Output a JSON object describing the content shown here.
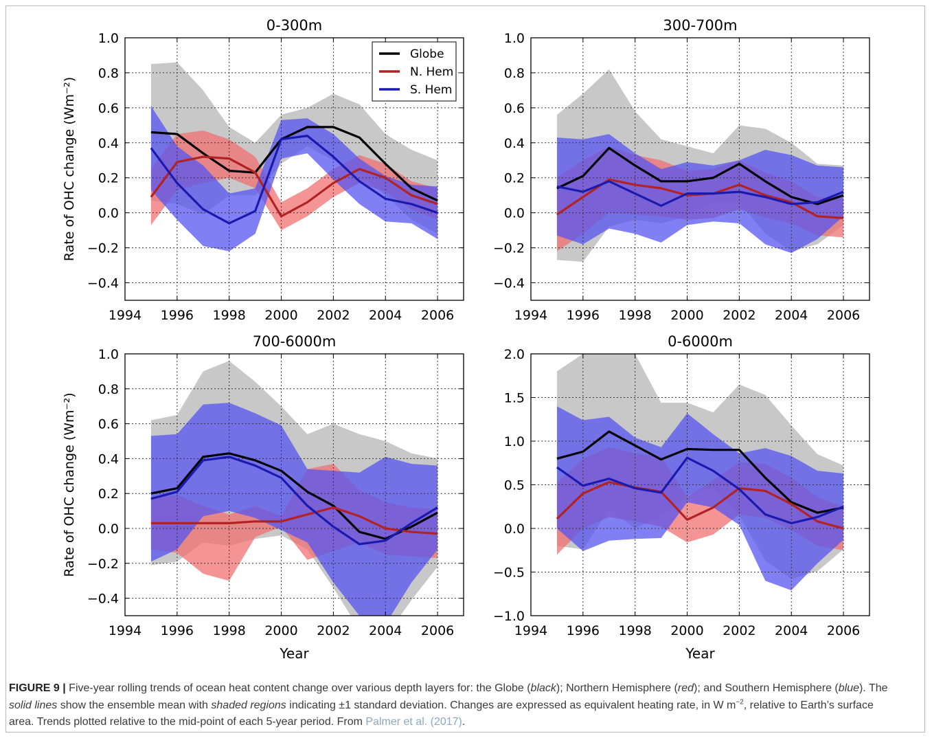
{
  "colors": {
    "globe": "#000000",
    "nhem": "#b22222",
    "shem": "#1a1ab0",
    "globe_band": "#c8c8c8",
    "nhem_band": "#f07070",
    "shem_band": "#5555f0"
  },
  "chart_data": [
    {
      "type": "line",
      "title": "0-300m",
      "xlabel": "",
      "ylabel": "Rate of OHC change (Wm⁻²)",
      "xlim": [
        1994,
        2007
      ],
      "ylim": [
        -0.5,
        1.0
      ],
      "xticks": [
        1994,
        1996,
        1998,
        2000,
        2002,
        2004,
        2006
      ],
      "yticks": [
        -0.4,
        -0.2,
        0.0,
        0.2,
        0.4,
        0.6,
        0.8,
        1.0
      ],
      "yticklabels": [
        "−0.4",
        "−0.2",
        "0.0",
        "0.2",
        "0.4",
        "0.6",
        "0.8",
        "1.0"
      ],
      "grid": true,
      "legend": "top-right",
      "x": [
        1995,
        1996,
        1997,
        1998,
        1999,
        2000,
        2001,
        2002,
        2003,
        2004,
        2005,
        2006
      ],
      "series": [
        {
          "name": "Globe",
          "key": "globe",
          "mean": [
            0.46,
            0.45,
            0.34,
            0.24,
            0.23,
            0.42,
            0.49,
            0.49,
            0.43,
            0.28,
            0.14,
            0.07
          ],
          "upper": [
            0.85,
            0.86,
            0.7,
            0.49,
            0.4,
            0.56,
            0.6,
            0.68,
            0.62,
            0.45,
            0.36,
            0.3
          ],
          "lower": [
            0.07,
            0.05,
            -0.01,
            0.1,
            0.1,
            0.28,
            0.38,
            0.3,
            0.22,
            0.1,
            -0.04,
            -0.12
          ]
        },
        {
          "name": "N. Hem",
          "key": "nhem",
          "mean": [
            0.09,
            0.29,
            0.32,
            0.31,
            0.23,
            -0.02,
            0.06,
            0.17,
            0.25,
            0.2,
            0.1,
            0.05
          ],
          "upper": [
            0.25,
            0.45,
            0.47,
            0.42,
            0.32,
            0.06,
            0.14,
            0.25,
            0.33,
            0.28,
            0.18,
            0.14
          ],
          "lower": [
            -0.07,
            0.13,
            0.17,
            0.2,
            0.14,
            -0.1,
            -0.02,
            0.09,
            0.17,
            0.12,
            0.02,
            -0.04
          ]
        },
        {
          "name": "S. Hem",
          "key": "shem",
          "mean": [
            0.37,
            0.17,
            0.02,
            -0.06,
            0.01,
            0.42,
            0.44,
            0.32,
            0.18,
            0.08,
            0.05,
            0.0
          ],
          "upper": [
            0.61,
            0.38,
            0.27,
            0.11,
            0.14,
            0.53,
            0.54,
            0.45,
            0.31,
            0.21,
            0.16,
            0.15
          ],
          "lower": [
            0.13,
            -0.04,
            -0.19,
            -0.22,
            -0.12,
            0.31,
            0.34,
            0.19,
            0.05,
            -0.05,
            -0.06,
            -0.15
          ]
        }
      ]
    },
    {
      "type": "line",
      "title": "300-700m",
      "xlabel": "",
      "ylabel": "",
      "xlim": [
        1994,
        2007
      ],
      "ylim": [
        -0.5,
        1.0
      ],
      "xticks": [
        1994,
        1996,
        1998,
        2000,
        2002,
        2004,
        2006
      ],
      "yticks": [
        -0.4,
        -0.2,
        0.0,
        0.2,
        0.4,
        0.6,
        0.8,
        1.0
      ],
      "yticklabels": [
        "−0.4",
        "−0.2",
        "0.0",
        "0.2",
        "0.4",
        "0.6",
        "0.8",
        "1.0"
      ],
      "grid": true,
      "x": [
        1995,
        1996,
        1997,
        1998,
        1999,
        2000,
        2001,
        2002,
        2003,
        2004,
        2005,
        2006
      ],
      "series": [
        {
          "key": "globe",
          "mean": [
            0.14,
            0.21,
            0.37,
            0.27,
            0.18,
            0.18,
            0.2,
            0.28,
            0.18,
            0.09,
            0.05,
            0.1
          ],
          "upper": [
            0.56,
            0.68,
            0.82,
            0.58,
            0.42,
            0.38,
            0.34,
            0.5,
            0.48,
            0.4,
            0.28,
            0.27
          ],
          "lower": [
            -0.27,
            -0.28,
            -0.08,
            -0.04,
            -0.06,
            -0.02,
            0.06,
            0.06,
            -0.12,
            -0.22,
            -0.18,
            -0.07
          ]
        },
        {
          "key": "nhem",
          "mean": [
            -0.01,
            0.09,
            0.19,
            0.16,
            0.14,
            0.1,
            0.11,
            0.16,
            0.1,
            0.06,
            -0.02,
            -0.03
          ],
          "upper": [
            0.2,
            0.3,
            0.38,
            0.33,
            0.3,
            0.24,
            0.25,
            0.3,
            0.23,
            0.18,
            0.09,
            0.08
          ],
          "lower": [
            -0.22,
            -0.12,
            0.0,
            -0.01,
            -0.02,
            -0.04,
            -0.03,
            0.02,
            -0.03,
            -0.06,
            -0.13,
            -0.14
          ]
        },
        {
          "key": "shem",
          "mean": [
            0.15,
            0.12,
            0.18,
            0.11,
            0.04,
            0.11,
            0.11,
            0.12,
            0.09,
            0.05,
            0.06,
            0.12
          ],
          "upper": [
            0.43,
            0.42,
            0.45,
            0.34,
            0.25,
            0.29,
            0.27,
            0.3,
            0.36,
            0.33,
            0.27,
            0.26
          ],
          "lower": [
            -0.13,
            -0.18,
            -0.09,
            -0.12,
            -0.17,
            -0.07,
            -0.05,
            -0.06,
            -0.18,
            -0.23,
            -0.15,
            -0.02
          ]
        }
      ]
    },
    {
      "type": "line",
      "title": "700-6000m",
      "xlabel": "Year",
      "ylabel": "Rate of OHC change (Wm⁻²)",
      "xlim": [
        1994,
        2007
      ],
      "ylim": [
        -0.5,
        1.0
      ],
      "xticks": [
        1994,
        1996,
        1998,
        2000,
        2002,
        2004,
        2006
      ],
      "yticks": [
        -0.4,
        -0.2,
        0.0,
        0.2,
        0.4,
        0.6,
        0.8,
        1.0
      ],
      "yticklabels": [
        "−0.4",
        "−0.2",
        "0.0",
        "0.2",
        "0.4",
        "0.6",
        "0.8",
        "1.0"
      ],
      "grid": true,
      "x": [
        1995,
        1996,
        1997,
        1998,
        1999,
        2000,
        2001,
        2002,
        2003,
        2004,
        2005,
        2006
      ],
      "series": [
        {
          "key": "globe",
          "mean": [
            0.2,
            0.23,
            0.41,
            0.43,
            0.39,
            0.33,
            0.21,
            0.13,
            -0.02,
            -0.06,
            0.01,
            0.09
          ],
          "upper": [
            0.62,
            0.65,
            0.9,
            0.96,
            0.84,
            0.7,
            0.54,
            0.6,
            0.54,
            0.5,
            0.43,
            0.4
          ],
          "lower": [
            -0.21,
            -0.19,
            -0.08,
            -0.1,
            -0.06,
            -0.04,
            -0.12,
            -0.34,
            -0.58,
            -0.62,
            -0.41,
            -0.22
          ]
        },
        {
          "key": "nhem",
          "mean": [
            0.03,
            0.03,
            0.03,
            0.03,
            0.04,
            0.04,
            0.08,
            0.12,
            0.07,
            0.0,
            -0.02,
            -0.03
          ],
          "upper": [
            0.18,
            0.19,
            0.13,
            0.08,
            0.13,
            0.07,
            0.34,
            0.37,
            0.22,
            0.15,
            0.12,
            0.11
          ],
          "lower": [
            -0.12,
            -0.14,
            -0.26,
            -0.3,
            -0.05,
            0.01,
            -0.18,
            -0.13,
            -0.08,
            -0.15,
            -0.16,
            -0.17
          ]
        },
        {
          "key": "shem",
          "mean": [
            0.17,
            0.21,
            0.39,
            0.41,
            0.36,
            0.29,
            0.13,
            0.01,
            -0.09,
            -0.07,
            0.03,
            0.12
          ],
          "upper": [
            0.53,
            0.54,
            0.71,
            0.72,
            0.66,
            0.59,
            0.34,
            0.33,
            0.32,
            0.41,
            0.37,
            0.36
          ],
          "lower": [
            -0.19,
            -0.12,
            0.07,
            0.1,
            0.06,
            -0.01,
            -0.08,
            -0.31,
            -0.5,
            -0.55,
            -0.31,
            -0.12
          ]
        }
      ]
    },
    {
      "type": "line",
      "title": "0-6000m",
      "xlabel": "Year",
      "ylabel": "",
      "xlim": [
        1994,
        2007
      ],
      "ylim": [
        -1.0,
        2.0
      ],
      "xticks": [
        1994,
        1996,
        1998,
        2000,
        2002,
        2004,
        2006
      ],
      "yticks": [
        -1.0,
        -0.5,
        0.0,
        0.5,
        1.0,
        1.5,
        2.0
      ],
      "yticklabels": [
        "−1.0",
        "−0.5",
        "0.0",
        "0.5",
        "1.0",
        "1.5",
        "2.0"
      ],
      "grid": true,
      "x": [
        1995,
        1996,
        1997,
        1998,
        1999,
        2000,
        2001,
        2002,
        2003,
        2004,
        2005,
        2006
      ],
      "series": [
        {
          "key": "globe",
          "mean": [
            0.8,
            0.88,
            1.11,
            0.95,
            0.79,
            0.91,
            0.9,
            0.9,
            0.58,
            0.3,
            0.18,
            0.24
          ],
          "upper": [
            1.8,
            2.0,
            2.0,
            2.0,
            1.44,
            1.44,
            1.33,
            1.65,
            1.53,
            1.18,
            0.85,
            0.72
          ],
          "lower": [
            -0.2,
            -0.24,
            0.22,
            0.0,
            0.14,
            0.38,
            0.47,
            0.15,
            -0.37,
            -0.58,
            -0.49,
            -0.24
          ]
        },
        {
          "key": "nhem",
          "mean": [
            0.11,
            0.4,
            0.53,
            0.47,
            0.42,
            0.1,
            0.24,
            0.46,
            0.43,
            0.28,
            0.08,
            0.0
          ],
          "upper": [
            0.52,
            0.8,
            0.93,
            0.86,
            0.82,
            0.36,
            0.55,
            0.76,
            0.74,
            0.58,
            0.36,
            0.25
          ],
          "lower": [
            -0.3,
            0.0,
            0.13,
            0.08,
            0.02,
            -0.16,
            -0.07,
            0.16,
            0.12,
            -0.02,
            -0.2,
            -0.25
          ]
        },
        {
          "key": "shem",
          "mean": [
            0.7,
            0.49,
            0.57,
            0.46,
            0.41,
            0.81,
            0.66,
            0.45,
            0.16,
            0.06,
            0.13,
            0.25
          ],
          "upper": [
            1.4,
            1.24,
            1.28,
            1.04,
            0.93,
            1.32,
            1.08,
            0.86,
            0.92,
            0.83,
            0.66,
            0.63
          ],
          "lower": [
            0.0,
            -0.26,
            -0.14,
            -0.12,
            -0.11,
            0.3,
            0.24,
            0.04,
            -0.6,
            -0.71,
            -0.4,
            -0.13
          ]
        }
      ]
    }
  ],
  "legend": {
    "globe": "Globe",
    "nhem": "N. Hem",
    "shem": "S. Hem"
  },
  "caption": {
    "label": "FIGURE 9 |",
    "p1": " Five-year rolling trends of ocean heat content change over various depth layers for: the Globe (",
    "w_black": "black",
    "p2": "); Northern Hemisphere (",
    "w_red": "red",
    "p3": "); and Southern Hemisphere (",
    "w_blue": "blue",
    "p4": "). The ",
    "w_solid": "solid lines",
    "p5": " show the ensemble mean with ",
    "w_shaded": "shaded regions",
    "p6": " indicating ±1 standard deviation. Changes are expressed as equivalent heating rate, in W m",
    "sup": "−2",
    "p7": ", relative to Earth’s surface area. Trends plotted relative to the mid-point of each 5-year period. From ",
    "citation": "Palmer et al. (2017)",
    "p8": "."
  }
}
